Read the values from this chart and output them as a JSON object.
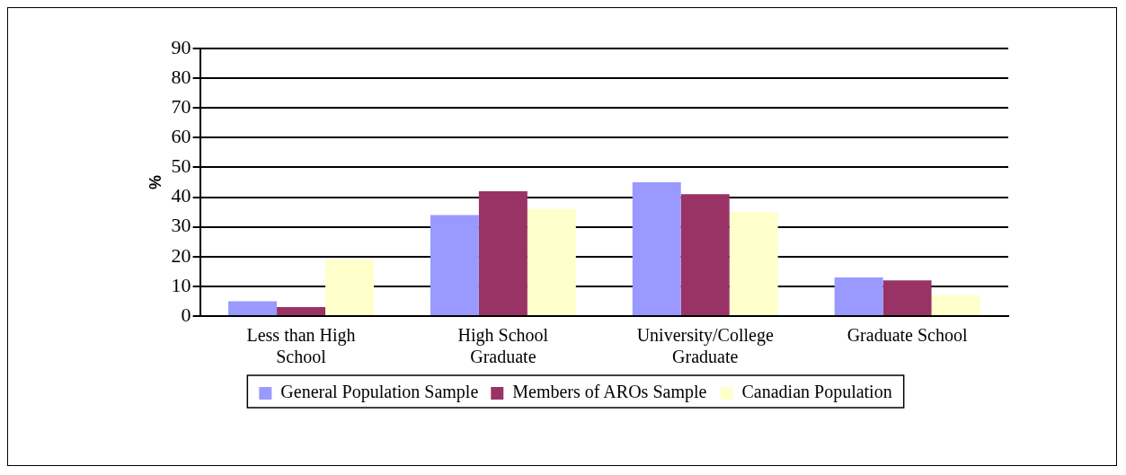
{
  "chart_data": {
    "type": "bar",
    "ylabel": "%",
    "categories": [
      "Less than High School",
      "High School Graduate",
      "University/College Graduate",
      "Graduate School"
    ],
    "series": [
      {
        "name": "General Population Sample",
        "color": "#9999ff",
        "values": [
          5,
          34,
          45,
          13
        ]
      },
      {
        "name": "Members of AROs Sample",
        "color": "#993366",
        "values": [
          3,
          42,
          41,
          12
        ]
      },
      {
        "name": "Canadian Population",
        "color": "#ffffcc",
        "values": [
          19,
          36,
          35,
          7
        ]
      }
    ],
    "ylim": [
      0,
      90
    ],
    "yticks": [
      0,
      10,
      20,
      30,
      40,
      50,
      60,
      70,
      80,
      90
    ],
    "grid": "y",
    "legend": "bottom"
  }
}
